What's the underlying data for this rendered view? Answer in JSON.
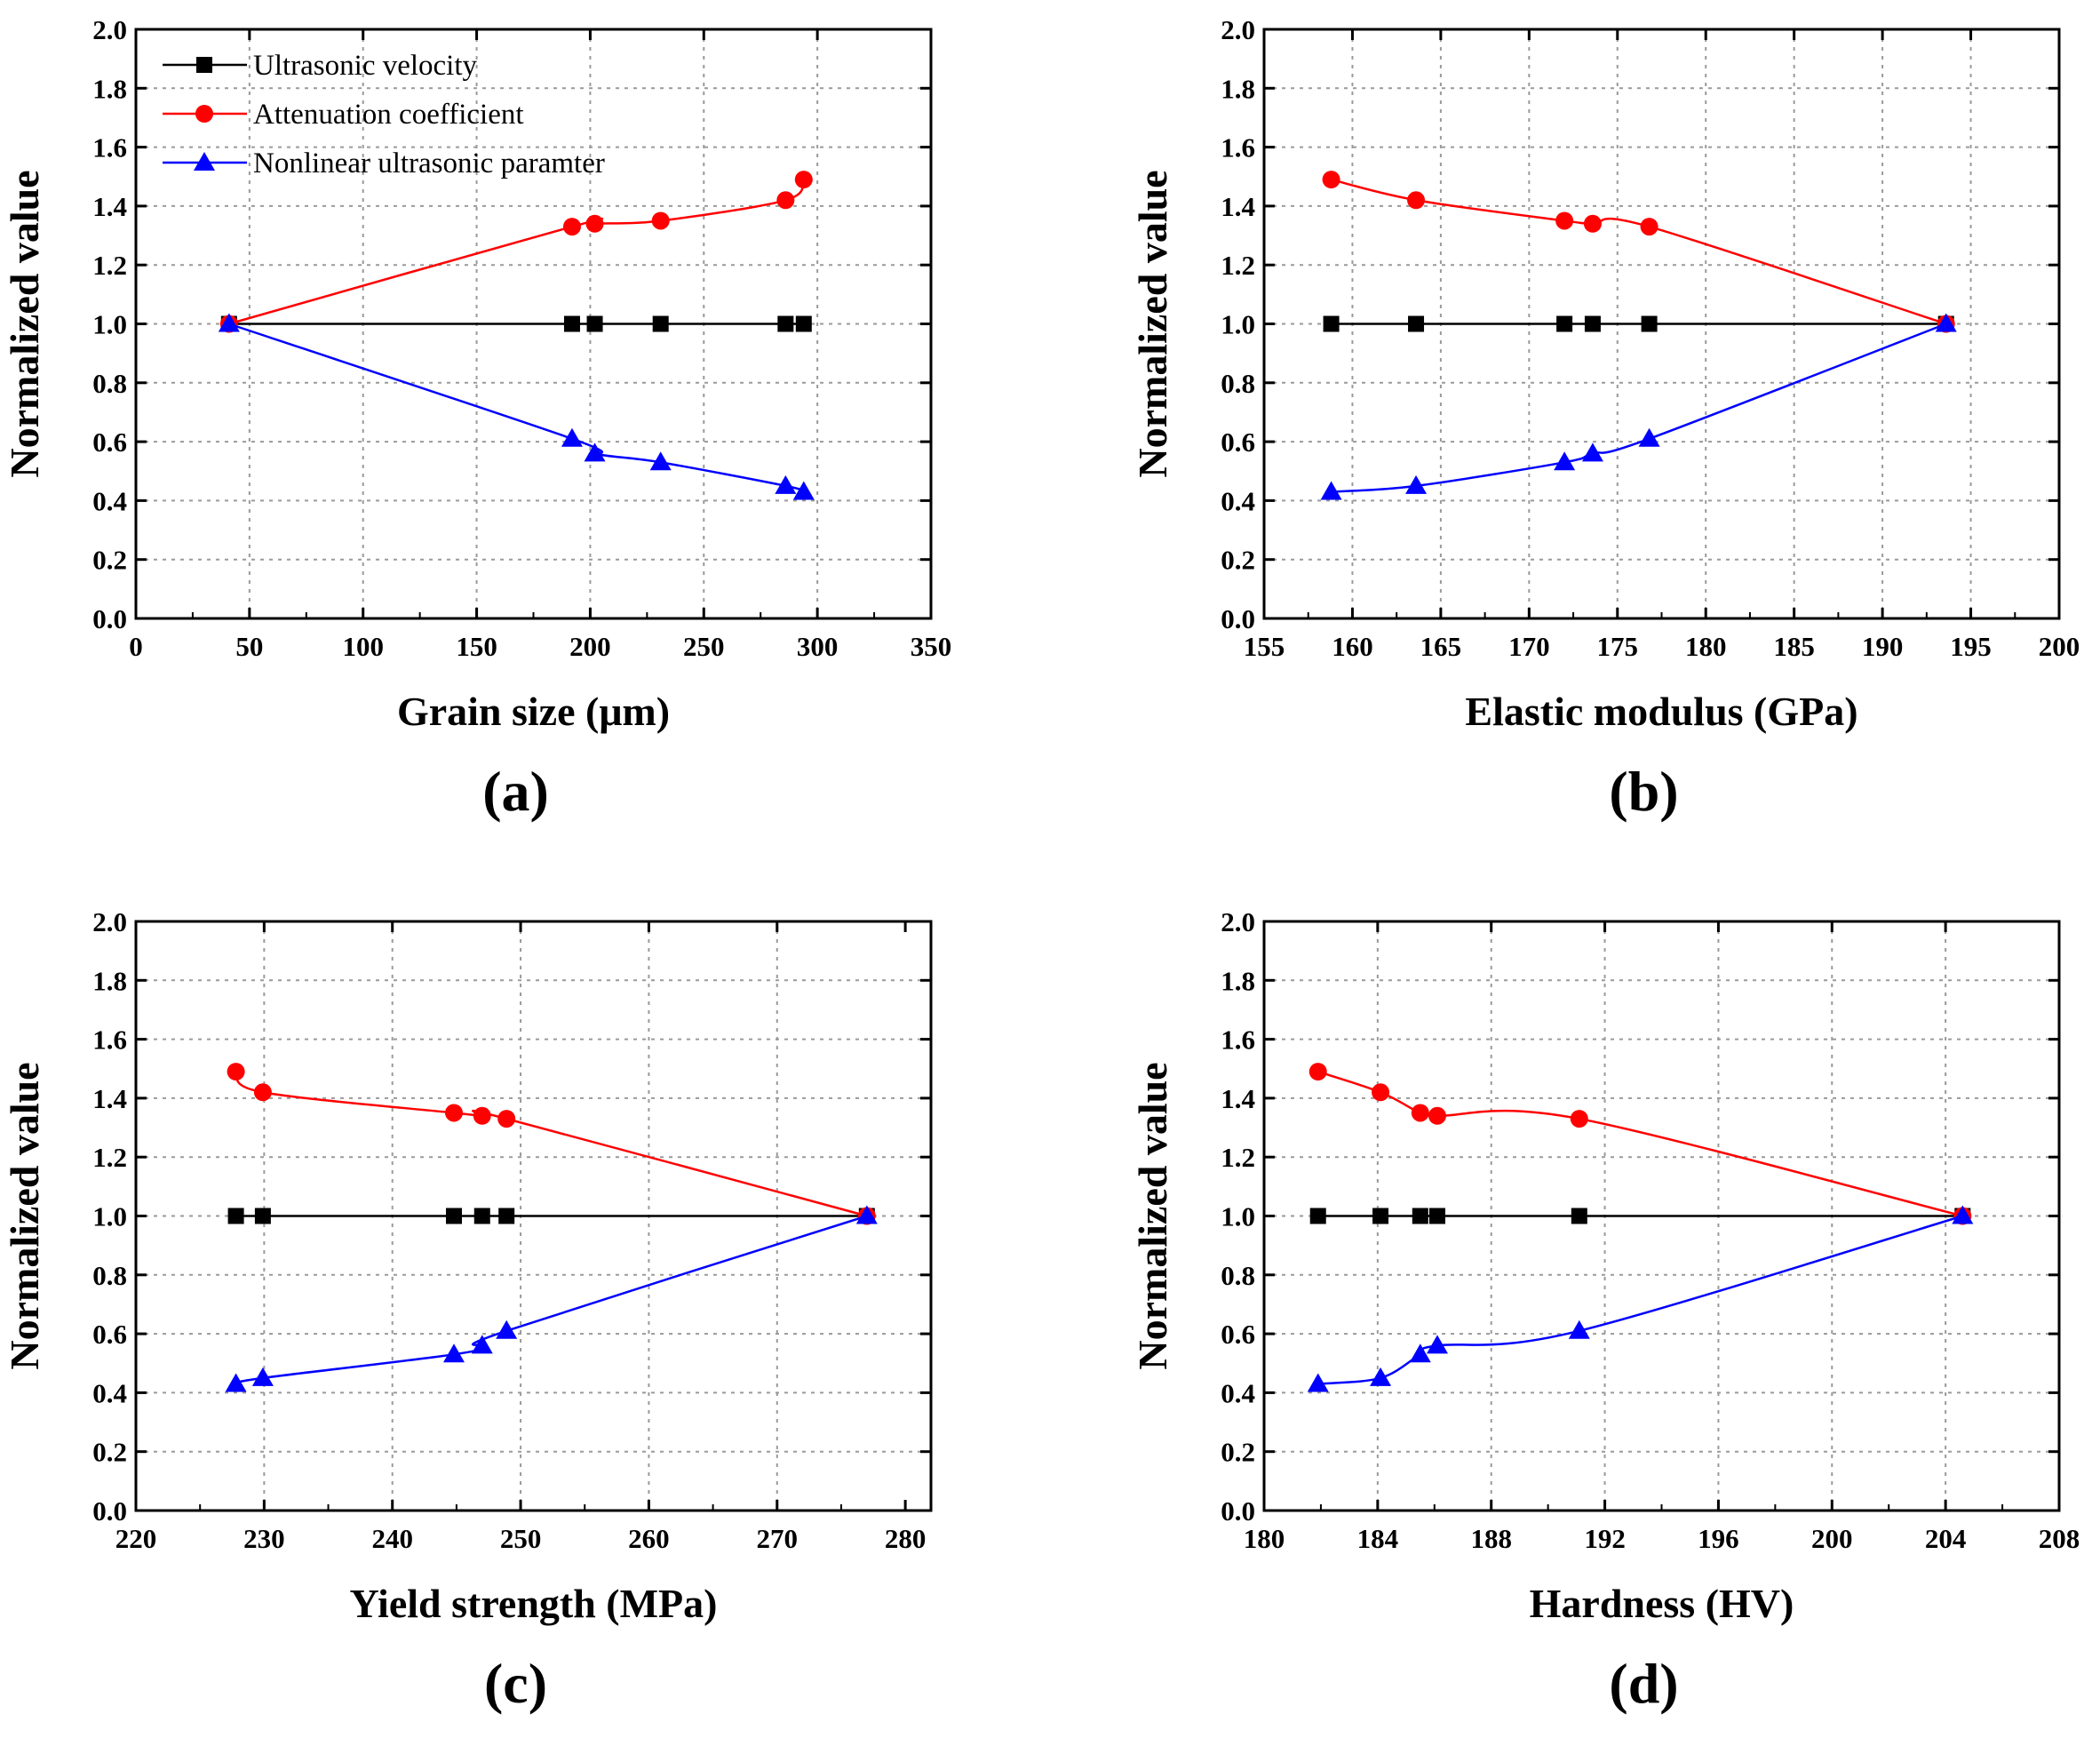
{
  "series_meta": [
    {
      "key": "velocity",
      "name": "Ultrasonic velocity",
      "color": "#000000",
      "marker": "square"
    },
    {
      "key": "attenuation",
      "name": "Attenuation coefficient",
      "color": "#ff0000",
      "marker": "circle"
    },
    {
      "key": "nonlinear",
      "name": "Nonlinear ultrasonic paramter",
      "color": "#0000ff",
      "marker": "triangle"
    }
  ],
  "chart_data": [
    {
      "type": "line",
      "panel_label": "(a)",
      "xlabel": "Grain size (μm)",
      "ylabel": "Normalized value",
      "xlim": [
        0,
        350
      ],
      "ylim": [
        0.0,
        2.0
      ],
      "xticks": [
        0,
        50,
        100,
        150,
        200,
        250,
        300,
        350
      ],
      "xtick_labels": [
        "0",
        "50",
        "100",
        "150",
        "200",
        "250",
        "300",
        "350"
      ],
      "yticks": [
        0.0,
        0.2,
        0.4,
        0.6,
        0.8,
        1.0,
        1.2,
        1.4,
        1.6,
        1.8,
        2.0
      ],
      "ytick_labels": [
        "0.0",
        "0.2",
        "0.4",
        "0.6",
        "0.8",
        "1.0",
        "1.2",
        "1.4",
        "1.6",
        "1.8",
        "2.0"
      ],
      "grid": true,
      "legend": "top-left",
      "series": [
        {
          "key": "velocity",
          "name": "Ultrasonic velocity",
          "x": [
            41,
            192,
            202,
            231,
            286,
            294
          ],
          "y": [
            1.0,
            1.0,
            1.0,
            1.0,
            1.0,
            1.0
          ]
        },
        {
          "key": "attenuation",
          "name": "Attenuation coefficient",
          "x": [
            41,
            192,
            202,
            231,
            286,
            294
          ],
          "y": [
            1.0,
            1.33,
            1.34,
            1.35,
            1.42,
            1.49
          ]
        },
        {
          "key": "nonlinear",
          "name": "Nonlinear ultrasonic paramter",
          "x": [
            41,
            192,
            202,
            231,
            286,
            294
          ],
          "y": [
            1.0,
            0.61,
            0.56,
            0.53,
            0.45,
            0.43
          ]
        }
      ]
    },
    {
      "type": "line",
      "panel_label": "(b)",
      "xlabel": "Elastic modulus (GPa)",
      "ylabel": "Normalized value",
      "xlim": [
        155,
        200
      ],
      "ylim": [
        0.0,
        2.0
      ],
      "xticks": [
        155,
        160,
        165,
        170,
        175,
        180,
        185,
        190,
        195,
        200
      ],
      "xtick_labels": [
        "155",
        "160",
        "165",
        "170",
        "175",
        "180",
        "185",
        "190",
        "195",
        "200"
      ],
      "yticks": [
        0.0,
        0.2,
        0.4,
        0.6,
        0.8,
        1.0,
        1.2,
        1.4,
        1.6,
        1.8,
        2.0
      ],
      "ytick_labels": [
        "0.0",
        "0.2",
        "0.4",
        "0.6",
        "0.8",
        "1.0",
        "1.2",
        "1.4",
        "1.6",
        "1.8",
        "2.0"
      ],
      "grid": true,
      "series": [
        {
          "key": "velocity",
          "name": "Ultrasonic velocity",
          "x": [
            158.8,
            163.6,
            172.0,
            173.6,
            176.8,
            193.6
          ],
          "y": [
            1.0,
            1.0,
            1.0,
            1.0,
            1.0,
            1.0
          ]
        },
        {
          "key": "attenuation",
          "name": "Attenuation coefficient",
          "x": [
            158.8,
            163.6,
            172.0,
            173.6,
            176.8,
            193.6
          ],
          "y": [
            1.49,
            1.42,
            1.35,
            1.34,
            1.33,
            1.0
          ]
        },
        {
          "key": "nonlinear",
          "name": "Nonlinear ultrasonic paramter",
          "x": [
            158.8,
            163.6,
            172.0,
            173.6,
            176.8,
            193.6
          ],
          "y": [
            0.43,
            0.45,
            0.53,
            0.56,
            0.61,
            1.0
          ]
        }
      ]
    },
    {
      "type": "line",
      "panel_label": "(c)",
      "xlabel": "Yield strength (MPa)",
      "ylabel": "Normalized value",
      "xlim": [
        220,
        282
      ],
      "ylim": [
        0.0,
        2.0
      ],
      "xticks": [
        220,
        230,
        240,
        250,
        260,
        270,
        280
      ],
      "xtick_labels": [
        "220",
        "230",
        "240",
        "250",
        "260",
        "270",
        "280"
      ],
      "yticks": [
        0.0,
        0.2,
        0.4,
        0.6,
        0.8,
        1.0,
        1.2,
        1.4,
        1.6,
        1.8,
        2.0
      ],
      "ytick_labels": [
        "0.0",
        "0.2",
        "0.4",
        "0.6",
        "0.8",
        "1.0",
        "1.2",
        "1.4",
        "1.6",
        "1.8",
        "2.0"
      ],
      "grid": true,
      "series": [
        {
          "key": "velocity",
          "name": "Ultrasonic velocity",
          "x": [
            227.8,
            229.9,
            244.8,
            247.0,
            248.9,
            277.0
          ],
          "y": [
            1.0,
            1.0,
            1.0,
            1.0,
            1.0,
            1.0
          ]
        },
        {
          "key": "attenuation",
          "name": "Attenuation coefficient",
          "x": [
            227.8,
            229.9,
            244.8,
            247.0,
            248.9,
            277.0
          ],
          "y": [
            1.49,
            1.42,
            1.35,
            1.34,
            1.33,
            1.0
          ]
        },
        {
          "key": "nonlinear",
          "name": "Nonlinear ultrasonic paramter",
          "x": [
            227.8,
            229.9,
            244.8,
            247.0,
            248.9,
            277.0
          ],
          "y": [
            0.43,
            0.45,
            0.53,
            0.56,
            0.61,
            1.0
          ]
        }
      ]
    },
    {
      "type": "line",
      "panel_label": "(d)",
      "xlabel": "Hardness (HV)",
      "ylabel": "Normalized value",
      "xlim": [
        180,
        208
      ],
      "ylim": [
        0.0,
        2.0
      ],
      "xticks": [
        180,
        184,
        188,
        192,
        196,
        200,
        204,
        208
      ],
      "xtick_labels": [
        "180",
        "184",
        "188",
        "192",
        "196",
        "200",
        "204",
        "208"
      ],
      "yticks": [
        0.0,
        0.2,
        0.4,
        0.6,
        0.8,
        1.0,
        1.2,
        1.4,
        1.6,
        1.8,
        2.0
      ],
      "ytick_labels": [
        "0.0",
        "0.2",
        "0.4",
        "0.6",
        "0.8",
        "1.0",
        "1.2",
        "1.4",
        "1.6",
        "1.8",
        "2.0"
      ],
      "grid": true,
      "series": [
        {
          "key": "velocity",
          "name": "Ultrasonic velocity",
          "x": [
            181.9,
            184.1,
            185.5,
            186.1,
            191.1,
            204.6
          ],
          "y": [
            1.0,
            1.0,
            1.0,
            1.0,
            1.0,
            1.0
          ]
        },
        {
          "key": "attenuation",
          "name": "Attenuation coefficient",
          "x": [
            181.9,
            184.1,
            185.5,
            186.1,
            191.1,
            204.6
          ],
          "y": [
            1.49,
            1.42,
            1.35,
            1.34,
            1.33,
            1.0
          ]
        },
        {
          "key": "nonlinear",
          "name": "Nonlinear ultrasonic paramter",
          "x": [
            181.9,
            184.1,
            185.5,
            186.1,
            191.1,
            204.6
          ],
          "y": [
            0.43,
            0.45,
            0.53,
            0.56,
            0.61,
            1.0
          ]
        }
      ]
    }
  ]
}
